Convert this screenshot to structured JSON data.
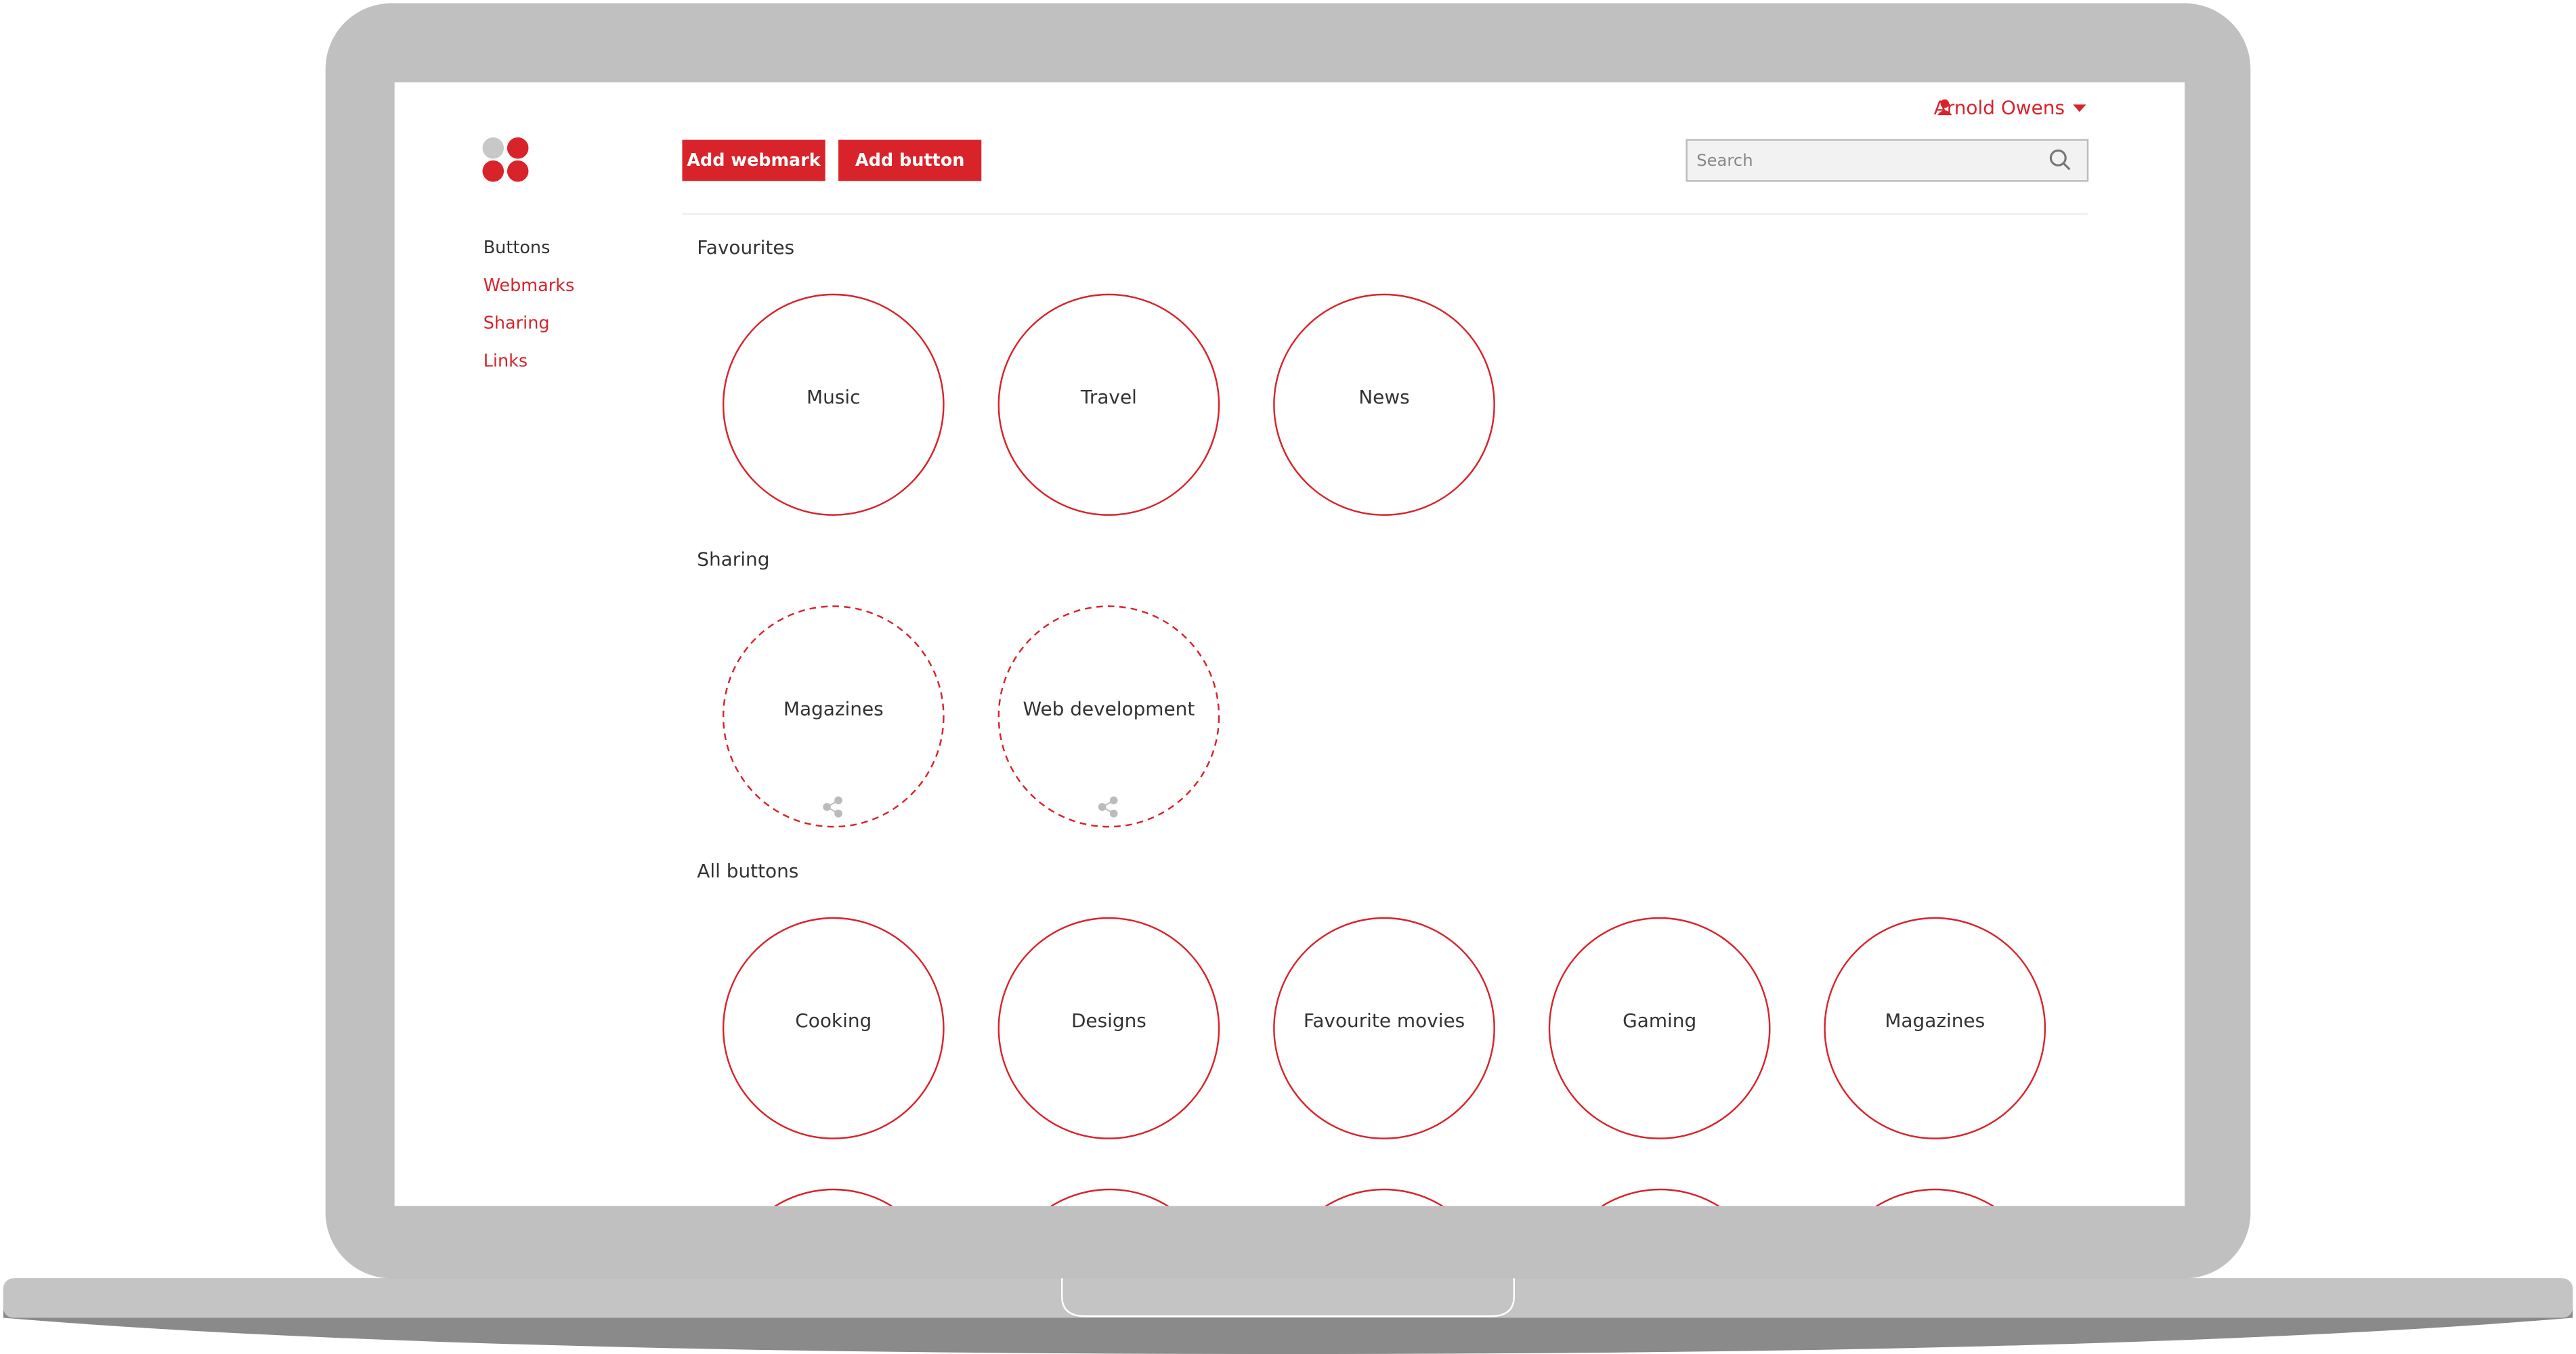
{
  "header": {
    "user": "Arnold Owens",
    "buttons": [
      "Add webmark",
      "Add button"
    ],
    "search_placeholder": "Search"
  },
  "nav": [
    "Buttons",
    "Webmarks",
    "Sharing",
    "Links"
  ],
  "sections": [
    {
      "title": "Favourites",
      "items": [
        "Music",
        "Travel",
        "News"
      ]
    },
    {
      "title": "Sharing",
      "items": [
        "Magazines",
        "Web development"
      ]
    },
    {
      "title": "All buttons",
      "items": [
        "Cooking",
        "Designs",
        "Favourite movies",
        "Gaming",
        "Magazines"
      ]
    }
  ]
}
